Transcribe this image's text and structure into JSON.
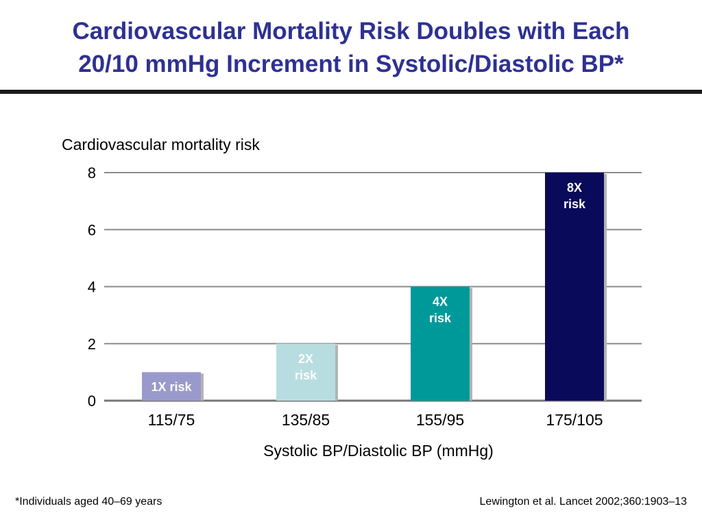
{
  "slide": {
    "title_line1": "Cardiovascular Mortality Risk Doubles with Each",
    "title_line2": "20/10 mmHg Increment in Systolic/Diastolic BP*",
    "footnote": "*Individuals aged 40–69 years",
    "citation": "Lewington et al. Lancet 2002;360:1903–13"
  },
  "chart_data": {
    "type": "bar",
    "title": "",
    "ylabel": "Cardiovascular mortality risk",
    "xlabel": "Systolic BP/Diastolic BP (mmHg)",
    "categories": [
      "115/75",
      "135/85",
      "155/95",
      "175/105"
    ],
    "values": [
      1,
      2,
      4,
      8
    ],
    "data_labels": [
      [
        "1X risk"
      ],
      [
        "2X",
        "risk"
      ],
      [
        "4X",
        "risk"
      ],
      [
        "8X",
        "risk"
      ]
    ],
    "colors": [
      "#9999cc",
      "#b8dde1",
      "#00999a",
      "#0a0a5a"
    ],
    "label_colors": [
      "#ffffff",
      "#ffffff",
      "#ffffff",
      "#ffffff"
    ],
    "ylim": [
      0,
      8
    ],
    "yticks": [
      0,
      2,
      4,
      6,
      8
    ],
    "grid": true,
    "legend": "none"
  }
}
